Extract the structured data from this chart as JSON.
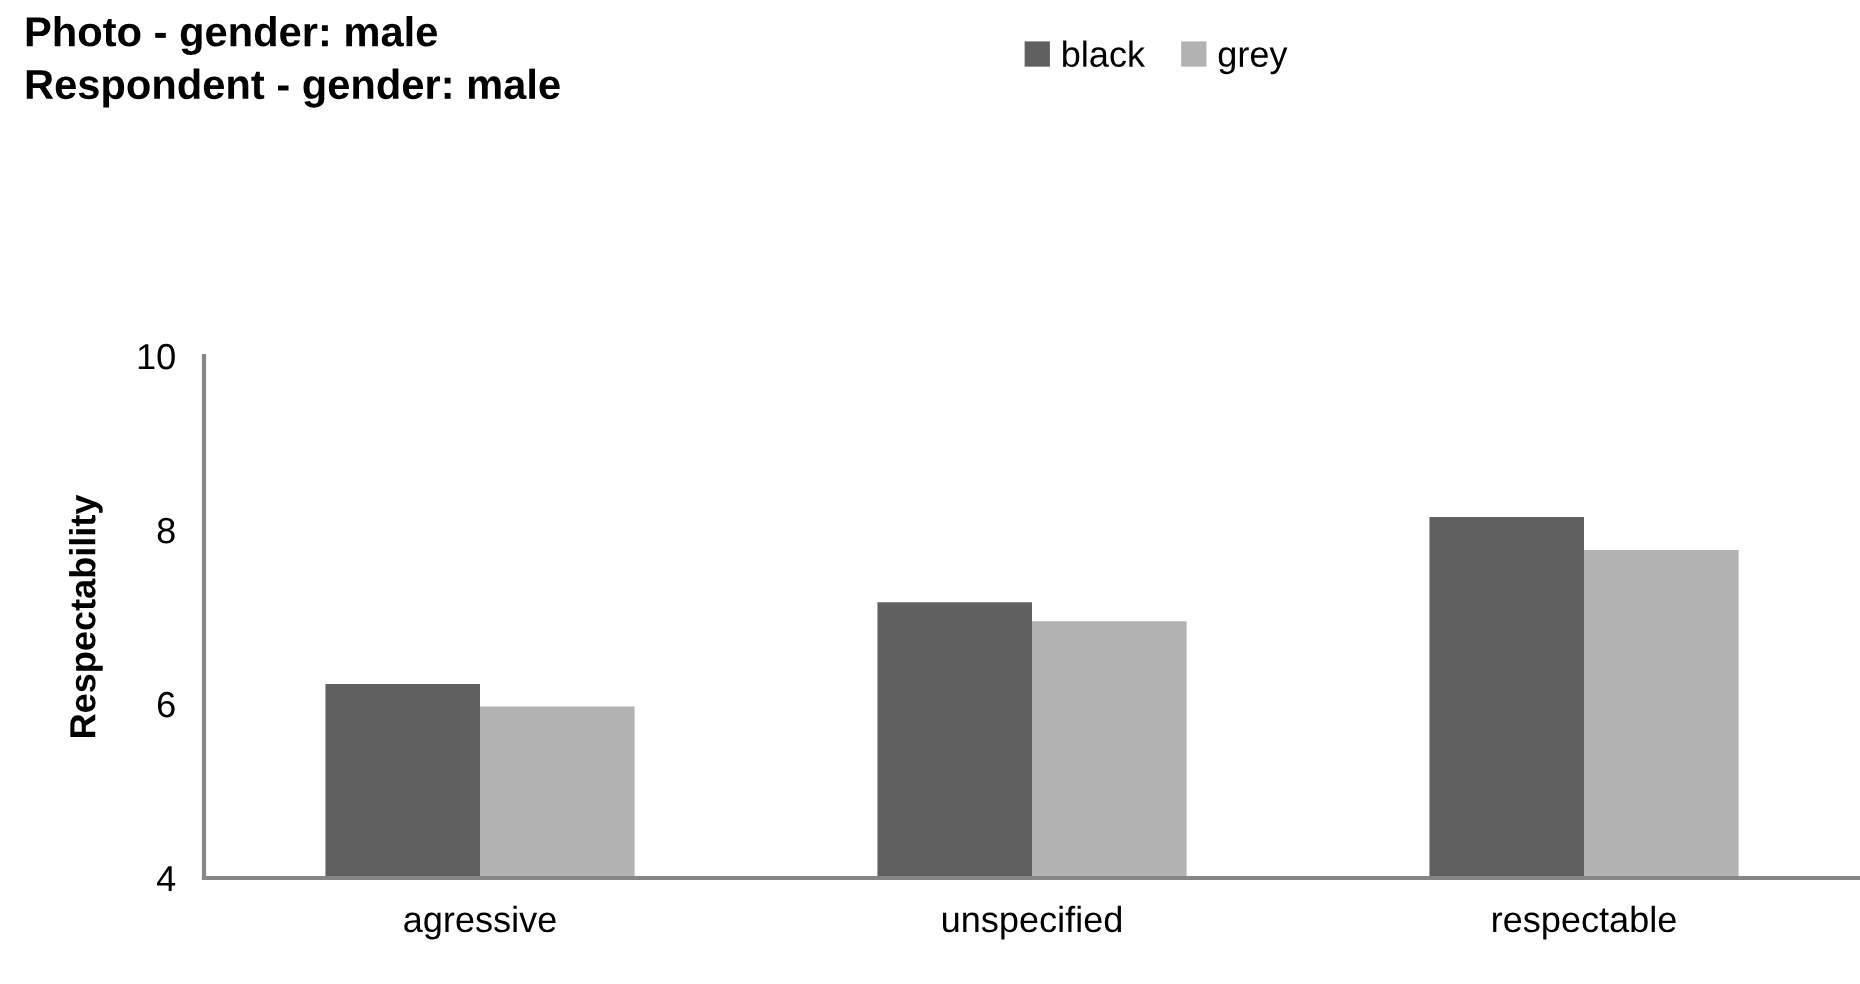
{
  "chart_data": {
    "type": "bar",
    "title": "Photo - gender: male\nRespondent - gender: male",
    "ylabel": "Respectability",
    "categories": [
      "agressive",
      "unspecified",
      "respectable"
    ],
    "series": [
      {
        "name": "black",
        "color": "#606060",
        "values": [
          6.23,
          7.17,
          8.15
        ]
      },
      {
        "name": "grey",
        "color": "#b2b2b2",
        "values": [
          5.97,
          6.95,
          7.77
        ]
      }
    ],
    "ylim": [
      4,
      10
    ],
    "yticks": [
      4,
      6,
      8,
      10
    ],
    "grid": false,
    "legend": "top right"
  }
}
